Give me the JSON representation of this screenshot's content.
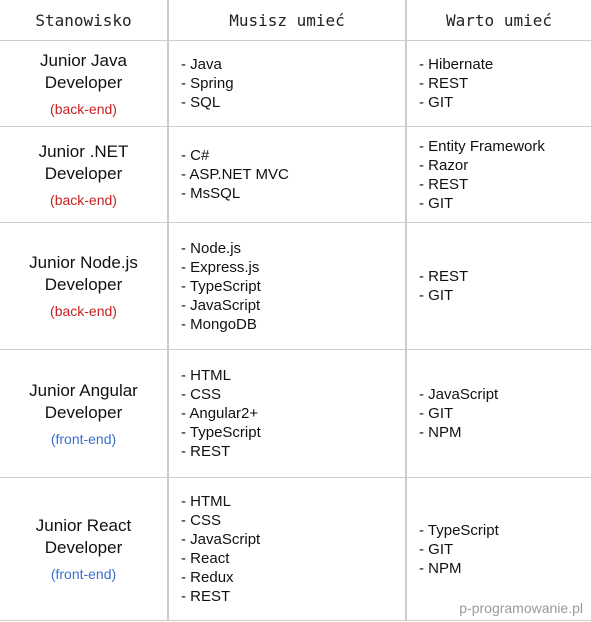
{
  "header": {
    "col_position": "Stanowisko",
    "col_required": "Musisz umieć",
    "col_nice": "Warto umieć"
  },
  "rows": [
    {
      "title": "Junior Java Developer",
      "tag": "(back-end)",
      "tag_color": "#c82020",
      "required": [
        "Java",
        "Spring",
        "SQL"
      ],
      "nice": [
        "Hibernate",
        "REST",
        "GIT"
      ]
    },
    {
      "title": "Junior .NET Developer",
      "tag": "(back-end)",
      "tag_color": "#c82020",
      "required": [
        "C#",
        "ASP.NET MVC",
        "MsSQL"
      ],
      "nice": [
        "Entity Framework",
        "Razor",
        "REST",
        "GIT"
      ]
    },
    {
      "title": "Junior Node.js Developer",
      "tag": "(back-end)",
      "tag_color": "#c82020",
      "required": [
        "Node.js",
        "Express.js",
        "TypeScript",
        "JavaScript",
        "MongoDB"
      ],
      "nice": [
        "REST",
        "GIT"
      ]
    },
    {
      "title": "Junior Angular Developer",
      "tag": "(front-end)",
      "tag_color": "#3a6fd0",
      "required": [
        "HTML",
        "CSS",
        "Angular2+",
        "TypeScript",
        "REST"
      ],
      "nice": [
        "JavaScript",
        "GIT",
        "NPM"
      ]
    },
    {
      "title": "Junior React Developer",
      "tag": "(front-end)",
      "tag_color": "#3a6fd0",
      "required": [
        "HTML",
        "CSS",
        "JavaScript",
        "React",
        "Redux",
        "REST"
      ],
      "nice": [
        "TypeScript",
        "GIT",
        "NPM"
      ]
    }
  ],
  "watermark": "p-programowanie.pl"
}
